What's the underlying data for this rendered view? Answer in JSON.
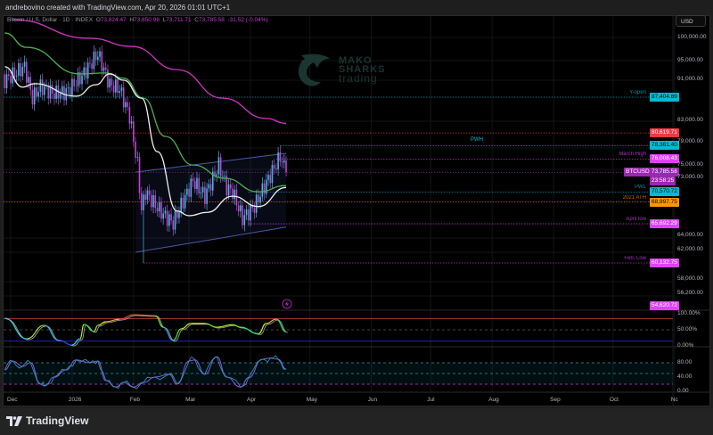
{
  "header": {
    "byline": "andrebovino created with TradingView.com, Apr 20, 2026 01:01 UTC+1"
  },
  "legend": {
    "symbol": "Bitcoin / U.S. Dollar · 1D · INDEX",
    "o_label": "O",
    "o": "73,824.47",
    "h_label": "H",
    "h": "73,850.98",
    "l_label": "L",
    "l": "73,711.71",
    "c_label": "C",
    "c": "73,785.58",
    "change": "-31.52 (-0.04%)"
  },
  "currency_button": "USD",
  "watermark": {
    "line1": "MAKO",
    "line2": "SHARKS",
    "line3": "trading"
  },
  "footer": {
    "brand": "TradingView"
  },
  "alert_icon": "lightning-bolt-icon",
  "colors": {
    "up": "#3fb8d8",
    "down": "#c040d0",
    "sma_long": "#d433c8",
    "ema_mid": "#4caf50",
    "ema_fast": "#f0f0f0",
    "channel": "#4a5aa8",
    "cyan": "#00bcd4",
    "red": "#f23645",
    "magenta": "#e040fb",
    "purple": "#9c27b0",
    "orange": "#ff9800"
  },
  "chart_data": {
    "type": "candlestick",
    "scale": "log",
    "y_range": [
      53500,
      106000
    ],
    "price_axis_ticks": [
      "100,000.00",
      "95,000.00",
      "91,000.00",
      "83,000.00",
      "79,000.00",
      "75,000.00",
      "73,000.00",
      "64,000.00",
      "62,000.00",
      "58,000.00",
      "56,200.00"
    ],
    "time_axis_ticks": [
      {
        "label": "Dec",
        "date": "2025-12-01"
      },
      {
        "label": "2026",
        "date": "2026-01-01"
      },
      {
        "label": "Feb",
        "date": "2026-02-01"
      },
      {
        "label": "Mar",
        "date": "2026-03-01"
      },
      {
        "label": "Apr",
        "date": "2026-04-01"
      },
      {
        "label": "May",
        "date": "2026-05-01"
      },
      {
        "label": "Jun",
        "date": "2026-06-01"
      },
      {
        "label": "Jul",
        "date": "2026-07-01"
      },
      {
        "label": "Aug",
        "date": "2026-08-01"
      },
      {
        "label": "Sep",
        "date": "2026-09-01"
      },
      {
        "label": "Oct",
        "date": "2026-10-01"
      },
      {
        "label": "Nc",
        "date": "2026-11-01"
      }
    ],
    "close_path": [
      [
        "2025-11-28",
        90800
      ],
      [
        "2025-12-08",
        93600
      ],
      [
        "2025-12-12",
        87200
      ],
      [
        "2025-12-16",
        89500
      ],
      [
        "2025-12-23",
        88100
      ],
      [
        "2025-12-29",
        88400
      ],
      [
        "2026-01-06",
        91700
      ],
      [
        "2026-01-14",
        96400
      ],
      [
        "2026-01-20",
        89900
      ],
      [
        "2026-01-25",
        89000
      ],
      [
        "2026-01-30",
        83800
      ],
      [
        "2026-02-03",
        75000
      ],
      [
        "2026-02-05",
        67800
      ],
      [
        "2026-02-07",
        70600
      ],
      [
        "2026-02-12",
        68500
      ],
      [
        "2026-02-16",
        67100
      ],
      [
        "2026-02-21",
        65800
      ],
      [
        "2026-02-25",
        68500
      ],
      [
        "2026-03-03",
        72400
      ],
      [
        "2026-03-09",
        69900
      ],
      [
        "2026-03-16",
        75000
      ],
      [
        "2026-03-20",
        71300
      ],
      [
        "2026-03-23",
        70600
      ],
      [
        "2026-03-28",
        66500
      ],
      [
        "2026-04-03",
        68300
      ],
      [
        "2026-04-09",
        72100
      ],
      [
        "2026-04-15",
        75800
      ],
      [
        "2026-04-16",
        76500
      ],
      [
        "2026-04-19",
        73785.58
      ]
    ],
    "notable_lows": [
      [
        "2026-02-06",
        60132.75
      ]
    ],
    "notable_highs": [
      [
        "2026-04-16",
        78361.4
      ]
    ],
    "moving_averages": [
      {
        "color_key": "sma_long",
        "points": [
          [
            "2025-12-02",
            104100
          ],
          [
            "2026-01-10",
            99800
          ],
          [
            "2026-01-31",
            98000
          ],
          [
            "2026-02-23",
            93000
          ],
          [
            "2026-03-18",
            87200
          ],
          [
            "2026-04-09",
            83300
          ],
          [
            "2026-04-19",
            82400
          ]
        ]
      },
      {
        "color_key": "ema_mid",
        "points": [
          [
            "2025-11-28",
            101000
          ],
          [
            "2025-12-09",
            97800
          ],
          [
            "2026-01-05",
            92100
          ],
          [
            "2026-01-18",
            92300
          ],
          [
            "2026-01-27",
            91200
          ],
          [
            "2026-02-06",
            87200
          ],
          [
            "2026-02-17",
            80000
          ],
          [
            "2026-03-03",
            75000
          ],
          [
            "2026-03-19",
            72800
          ],
          [
            "2026-04-05",
            70600
          ],
          [
            "2026-04-19",
            71600
          ]
        ]
      },
      {
        "color_key": "ema_fast",
        "points": [
          [
            "2025-11-28",
            93600
          ],
          [
            "2025-12-07",
            89400
          ],
          [
            "2025-12-13",
            90100
          ],
          [
            "2026-01-03",
            87600
          ],
          [
            "2026-01-13",
            89900
          ],
          [
            "2026-01-20",
            92100
          ],
          [
            "2026-01-27",
            90800
          ],
          [
            "2026-02-05",
            87200
          ],
          [
            "2026-02-13",
            77300
          ],
          [
            "2026-02-23",
            67600
          ],
          [
            "2026-03-01",
            66900
          ],
          [
            "2026-03-10",
            67400
          ],
          [
            "2026-03-23",
            69900
          ],
          [
            "2026-04-05",
            68300
          ],
          [
            "2026-04-19",
            71300
          ]
        ]
      }
    ],
    "channel": {
      "top": [
        [
          "2026-02-02",
          73800
        ],
        [
          "2026-04-19",
          77000
        ]
      ],
      "bottom": [
        [
          "2026-02-02",
          61600
        ],
        [
          "2026-04-19",
          65200
        ]
      ]
    },
    "levels": [
      {
        "label": "Y-open",
        "value": "87,404.69",
        "price": 87404.69,
        "color_key": "cyan",
        "from": "2025-11-26",
        "text_color": "#000"
      },
      {
        "label": "",
        "value": "80,619.71",
        "price": 80619.71,
        "color_key": "red",
        "from": "2025-11-26",
        "text_color": "#fff"
      },
      {
        "label": "PWH",
        "value": "78,361.40",
        "price": 78361.4,
        "color_key": "cyan",
        "from": "2026-04-16",
        "text_color": "#000"
      },
      {
        "label": "March High",
        "value": "76,008.43",
        "price": 76008.43,
        "color_key": "magenta",
        "from": "2026-04-14",
        "text_color": "#fff"
      },
      {
        "label": "PWL",
        "value": "70,570.72",
        "price": 70570.72,
        "color_key": "cyan",
        "from": "2026-03-31",
        "text_color": "#000"
      },
      {
        "label": "2021 ATH",
        "value": "68,997.75",
        "price": 68997.75,
        "color_key": "orange",
        "from": "2025-11-26",
        "text_color": "#000"
      },
      {
        "label": "April low",
        "value": "65,692.29",
        "price": 65692.29,
        "color_key": "magenta",
        "from": "2026-03-31",
        "text_color": "#fff"
      },
      {
        "label": "Feb. Low",
        "value": "60,132.75",
        "price": 60132.75,
        "color_key": "magenta",
        "from": "2026-02-06",
        "text_color": "#fff"
      },
      {
        "label": "",
        "value": "54,620.72",
        "price": 54620.72,
        "color_key": "magenta",
        "from": null,
        "text_color": "#fff"
      }
    ],
    "last_price": {
      "symbol": "BTCUSD",
      "value": "73,785.58",
      "countdown": "23:58:25",
      "price": 73785.58
    },
    "oscillator_1": {
      "axis_ticks": [
        "100.00%",
        "50.00%",
        "0.00%"
      ],
      "upper_line": 85,
      "lower_line": 15,
      "points": [
        [
          "2025-11-28",
          86
        ],
        [
          "2025-12-09",
          22
        ],
        [
          "2025-12-18",
          64
        ],
        [
          "2025-12-25",
          18
        ],
        [
          "2026-01-01",
          3
        ],
        [
          "2026-01-05",
          22
        ],
        [
          "2026-01-07",
          67
        ],
        [
          "2026-01-12",
          45
        ],
        [
          "2026-01-14",
          64
        ],
        [
          "2026-01-18",
          75
        ],
        [
          "2026-01-25",
          83
        ],
        [
          "2026-02-01",
          97
        ],
        [
          "2026-02-12",
          94
        ],
        [
          "2026-02-16",
          58
        ],
        [
          "2026-02-21",
          17
        ],
        [
          "2026-02-25",
          53
        ],
        [
          "2026-03-02",
          70
        ],
        [
          "2026-03-09",
          70
        ],
        [
          "2026-03-15",
          58
        ],
        [
          "2026-03-23",
          66
        ],
        [
          "2026-03-27",
          58
        ],
        [
          "2026-04-05",
          38
        ],
        [
          "2026-04-09",
          70
        ],
        [
          "2026-04-14",
          83
        ],
        [
          "2026-04-19",
          44
        ]
      ]
    },
    "oscillator_2": {
      "axis_ticks": [
        "80.00",
        "40.00",
        "0.00"
      ],
      "upper_line": 80,
      "lower_line": 20,
      "series": [
        {
          "points": [
            [
              "2025-11-28",
              60
            ],
            [
              "2025-12-02",
              85
            ],
            [
              "2025-12-07",
              70
            ],
            [
              "2025-12-11",
              80
            ],
            [
              "2025-12-16",
              20
            ],
            [
              "2025-12-18",
              15
            ],
            [
              "2025-12-23",
              40
            ],
            [
              "2025-12-29",
              60
            ],
            [
              "2026-01-03",
              88
            ],
            [
              "2026-01-10",
              80
            ],
            [
              "2026-01-14",
              85
            ],
            [
              "2026-01-18",
              30
            ],
            [
              "2026-01-23",
              12
            ],
            [
              "2026-01-27",
              25
            ],
            [
              "2026-02-01",
              12
            ],
            [
              "2026-02-06",
              25
            ],
            [
              "2026-02-12",
              40
            ],
            [
              "2026-02-19",
              48
            ],
            [
              "2026-02-23",
              20
            ],
            [
              "2026-03-01",
              85
            ],
            [
              "2026-03-04",
              88
            ],
            [
              "2026-03-09",
              48
            ],
            [
              "2026-03-15",
              97
            ],
            [
              "2026-03-20",
              40
            ],
            [
              "2026-03-27",
              12
            ],
            [
              "2026-03-31",
              38
            ],
            [
              "2026-04-07",
              90
            ],
            [
              "2026-04-11",
              93
            ],
            [
              "2026-04-15",
              90
            ],
            [
              "2026-04-19",
              62
            ]
          ]
        }
      ]
    }
  }
}
